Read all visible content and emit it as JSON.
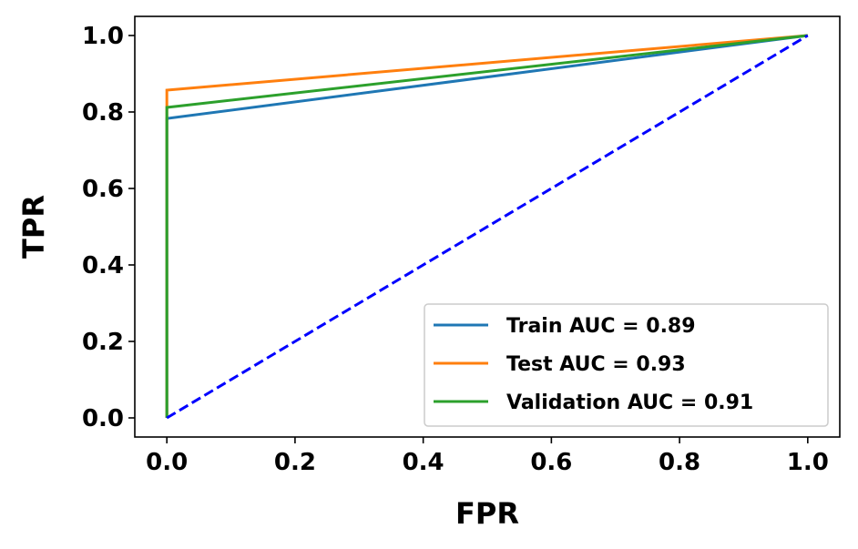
{
  "chart_data": {
    "type": "line",
    "title": "",
    "xlabel": "FPR",
    "ylabel": "TPR",
    "xlim": [
      -0.05,
      1.05
    ],
    "ylim": [
      -0.05,
      1.05
    ],
    "xticks": [
      0.0,
      0.2,
      0.4,
      0.6,
      0.8,
      1.0
    ],
    "yticks": [
      0.0,
      0.2,
      0.4,
      0.6,
      0.8,
      1.0
    ],
    "xtick_labels": [
      "0.0",
      "0.2",
      "0.4",
      "0.6",
      "0.8",
      "1.0"
    ],
    "ytick_labels": [
      "0.0",
      "0.2",
      "0.4",
      "0.6",
      "0.8",
      "1.0"
    ],
    "grid": false,
    "legend_position": "lower-right",
    "series": [
      {
        "name": "Train AUC = 0.89",
        "color": "#1f77b4",
        "style": "solid",
        "x": [
          0.0,
          0.0,
          1.0
        ],
        "y": [
          0.0,
          0.783,
          1.0
        ]
      },
      {
        "name": "Test AUC = 0.93",
        "color": "#ff7f0e",
        "style": "solid",
        "x": [
          0.0,
          0.0,
          1.0
        ],
        "y": [
          0.0,
          0.857,
          1.0
        ]
      },
      {
        "name": "Validation AUC = 0.91",
        "color": "#2ca02c",
        "style": "solid",
        "x": [
          0.0,
          0.0,
          1.0
        ],
        "y": [
          0.0,
          0.812,
          1.0
        ]
      }
    ],
    "reference_line": {
      "color": "#0000ff",
      "style": "dashed",
      "x": [
        0.0,
        1.0
      ],
      "y": [
        0.0,
        1.0
      ]
    }
  }
}
